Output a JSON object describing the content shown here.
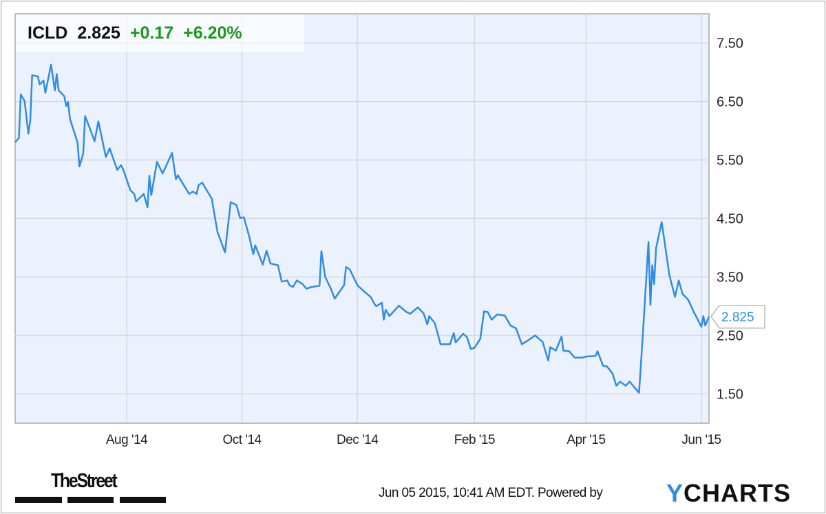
{
  "header": {
    "ticker": "ICLD",
    "price": "2.825",
    "change": "+0.17",
    "change_pct": "+6.20%"
  },
  "footer": {
    "timestamp": "Jun 05 2015, 10:41 AM EDT.",
    "powered_by": "Powered by",
    "ycharts_logo": "YCHARTS",
    "thestreet_logo": "TheStreet"
  },
  "colors": {
    "line": "#2f8ce6",
    "plot_bg": "#ebf2fd",
    "grid": "#d8d8d8",
    "positive": "#1a9a1a",
    "text": "#111111"
  },
  "chart_data": {
    "type": "line",
    "title": "",
    "xlabel": "",
    "ylabel": "",
    "ylim": [
      1,
      8
    ],
    "grid": true,
    "y_axis_side": "right",
    "y_ticks": [
      1.5,
      2.5,
      3.5,
      4.5,
      5.5,
      6.5,
      7.5
    ],
    "y_tick_labels": [
      "1.50",
      "2.50",
      "3.50",
      "4.50",
      "5.50",
      "6.50",
      "7.50"
    ],
    "x_ticks": [
      {
        "date": "2014-08-01",
        "label": "Aug '14"
      },
      {
        "date": "2014-10-01",
        "label": "Oct '14"
      },
      {
        "date": "2014-12-01",
        "label": "Dec '14"
      },
      {
        "date": "2015-02-01",
        "label": "Feb '15"
      },
      {
        "date": "2015-04-01",
        "label": "Apr '15"
      },
      {
        "date": "2015-06-01",
        "label": "Jun '15"
      }
    ],
    "last_value_label": "2.825",
    "series": [
      {
        "points": [
          [
            "2014-06-03",
            5.8
          ],
          [
            "2014-06-05",
            5.88
          ],
          [
            "2014-06-06",
            6.62
          ],
          [
            "2014-06-08",
            6.51
          ],
          [
            "2014-06-10",
            5.95
          ],
          [
            "2014-06-11",
            6.18
          ],
          [
            "2014-06-12",
            6.95
          ],
          [
            "2014-06-15",
            6.93
          ],
          [
            "2014-06-16",
            6.79
          ],
          [
            "2014-06-18",
            6.86
          ],
          [
            "2014-06-19",
            6.65
          ],
          [
            "2014-06-22",
            7.13
          ],
          [
            "2014-06-24",
            6.69
          ],
          [
            "2014-06-25",
            6.97
          ],
          [
            "2014-06-26",
            6.69
          ],
          [
            "2014-06-29",
            6.59
          ],
          [
            "2014-06-30",
            6.42
          ],
          [
            "2014-07-01",
            6.49
          ],
          [
            "2014-07-02",
            6.2
          ],
          [
            "2014-07-06",
            5.8
          ],
          [
            "2014-07-07",
            5.39
          ],
          [
            "2014-07-09",
            5.61
          ],
          [
            "2014-07-10",
            6.25
          ],
          [
            "2014-07-13",
            6.0
          ],
          [
            "2014-07-15",
            5.82
          ],
          [
            "2014-07-17",
            6.16
          ],
          [
            "2014-07-21",
            5.55
          ],
          [
            "2014-07-23",
            5.7
          ],
          [
            "2014-07-27",
            5.33
          ],
          [
            "2014-07-29",
            5.41
          ],
          [
            "2014-07-30",
            5.35
          ],
          [
            "2014-08-03",
            4.98
          ],
          [
            "2014-08-05",
            4.92
          ],
          [
            "2014-08-06",
            4.79
          ],
          [
            "2014-08-10",
            4.92
          ],
          [
            "2014-08-12",
            4.69
          ],
          [
            "2014-08-13",
            5.23
          ],
          [
            "2014-08-14",
            4.9
          ],
          [
            "2014-08-17",
            5.47
          ],
          [
            "2014-08-20",
            5.27
          ],
          [
            "2014-08-25",
            5.62
          ],
          [
            "2014-08-27",
            5.17
          ],
          [
            "2014-08-28",
            5.24
          ],
          [
            "2014-09-03",
            4.92
          ],
          [
            "2014-09-05",
            4.96
          ],
          [
            "2014-09-07",
            4.92
          ],
          [
            "2014-09-08",
            5.07
          ],
          [
            "2014-09-10",
            5.11
          ],
          [
            "2014-09-15",
            4.84
          ],
          [
            "2014-09-18",
            4.27
          ],
          [
            "2014-09-22",
            3.92
          ],
          [
            "2014-09-25",
            4.78
          ],
          [
            "2014-09-28",
            4.73
          ],
          [
            "2014-09-30",
            4.51
          ],
          [
            "2014-10-02",
            4.52
          ],
          [
            "2014-10-05",
            4.17
          ],
          [
            "2014-10-06",
            4.02
          ],
          [
            "2014-10-07",
            3.89
          ],
          [
            "2014-10-08",
            4.04
          ],
          [
            "2014-10-12",
            3.71
          ],
          [
            "2014-10-14",
            3.95
          ],
          [
            "2014-10-16",
            3.73
          ],
          [
            "2014-10-20",
            3.7
          ],
          [
            "2014-10-22",
            3.42
          ],
          [
            "2014-10-25",
            3.44
          ],
          [
            "2014-10-26",
            3.36
          ],
          [
            "2014-10-28",
            3.33
          ],
          [
            "2014-10-30",
            3.44
          ],
          [
            "2014-11-02",
            3.38
          ],
          [
            "2014-11-04",
            3.3
          ],
          [
            "2014-11-07",
            3.33
          ],
          [
            "2014-11-11",
            3.35
          ],
          [
            "2014-11-12",
            3.94
          ],
          [
            "2014-11-14",
            3.5
          ],
          [
            "2014-11-17",
            3.3
          ],
          [
            "2014-11-19",
            3.13
          ],
          [
            "2014-11-24",
            3.36
          ],
          [
            "2014-11-25",
            3.67
          ],
          [
            "2014-11-27",
            3.63
          ],
          [
            "2014-12-01",
            3.36
          ],
          [
            "2014-12-05",
            3.24
          ],
          [
            "2014-12-08",
            3.16
          ],
          [
            "2014-12-10",
            3.04
          ],
          [
            "2014-12-11",
            3.0
          ],
          [
            "2014-12-14",
            3.06
          ],
          [
            "2014-12-15",
            2.77
          ],
          [
            "2014-12-16",
            2.94
          ],
          [
            "2014-12-18",
            2.83
          ],
          [
            "2014-12-23",
            3.01
          ],
          [
            "2014-12-27",
            2.9
          ],
          [
            "2014-12-29",
            2.87
          ],
          [
            "2015-01-02",
            2.98
          ],
          [
            "2015-01-05",
            2.88
          ],
          [
            "2015-01-07",
            2.69
          ],
          [
            "2015-01-08",
            2.83
          ],
          [
            "2015-01-11",
            2.71
          ],
          [
            "2015-01-14",
            2.35
          ],
          [
            "2015-01-19",
            2.35
          ],
          [
            "2015-01-21",
            2.54
          ],
          [
            "2015-01-22",
            2.38
          ],
          [
            "2015-01-26",
            2.53
          ],
          [
            "2015-01-28",
            2.47
          ],
          [
            "2015-01-30",
            2.27
          ],
          [
            "2015-02-01",
            2.29
          ],
          [
            "2015-02-04",
            2.44
          ],
          [
            "2015-02-06",
            2.91
          ],
          [
            "2015-02-08",
            2.9
          ],
          [
            "2015-02-10",
            2.77
          ],
          [
            "2015-02-13",
            2.86
          ],
          [
            "2015-02-17",
            2.84
          ],
          [
            "2015-02-20",
            2.67
          ],
          [
            "2015-02-23",
            2.62
          ],
          [
            "2015-02-26",
            2.35
          ],
          [
            "2015-03-02",
            2.43
          ],
          [
            "2015-03-05",
            2.5
          ],
          [
            "2015-03-09",
            2.39
          ],
          [
            "2015-03-12",
            2.07
          ],
          [
            "2015-03-13",
            2.3
          ],
          [
            "2015-03-16",
            2.24
          ],
          [
            "2015-03-19",
            2.48
          ],
          [
            "2015-03-20",
            2.24
          ],
          [
            "2015-03-23",
            2.23
          ],
          [
            "2015-03-26",
            2.12
          ],
          [
            "2015-03-30",
            2.12
          ],
          [
            "2015-04-01",
            2.14
          ],
          [
            "2015-04-06",
            2.15
          ],
          [
            "2015-04-07",
            2.23
          ],
          [
            "2015-04-10",
            1.98
          ],
          [
            "2015-04-12",
            1.97
          ],
          [
            "2015-04-15",
            1.85
          ],
          [
            "2015-04-17",
            1.64
          ],
          [
            "2015-04-19",
            1.71
          ],
          [
            "2015-04-22",
            1.64
          ],
          [
            "2015-04-24",
            1.71
          ],
          [
            "2015-04-29",
            1.52
          ],
          [
            "2015-05-01",
            2.51
          ],
          [
            "2015-05-04",
            4.1
          ],
          [
            "2015-05-05",
            3.02
          ],
          [
            "2015-05-06",
            3.7
          ],
          [
            "2015-05-07",
            3.38
          ],
          [
            "2015-05-08",
            3.99
          ],
          [
            "2015-05-11",
            4.44
          ],
          [
            "2015-05-15",
            3.54
          ],
          [
            "2015-05-18",
            3.16
          ],
          [
            "2015-05-20",
            3.44
          ],
          [
            "2015-05-22",
            3.21
          ],
          [
            "2015-05-25",
            3.11
          ],
          [
            "2015-05-28",
            2.9
          ],
          [
            "2015-06-01",
            2.65
          ],
          [
            "2015-06-02",
            2.83
          ],
          [
            "2015-06-03",
            2.67
          ],
          [
            "2015-06-05",
            2.825
          ]
        ]
      }
    ]
  }
}
